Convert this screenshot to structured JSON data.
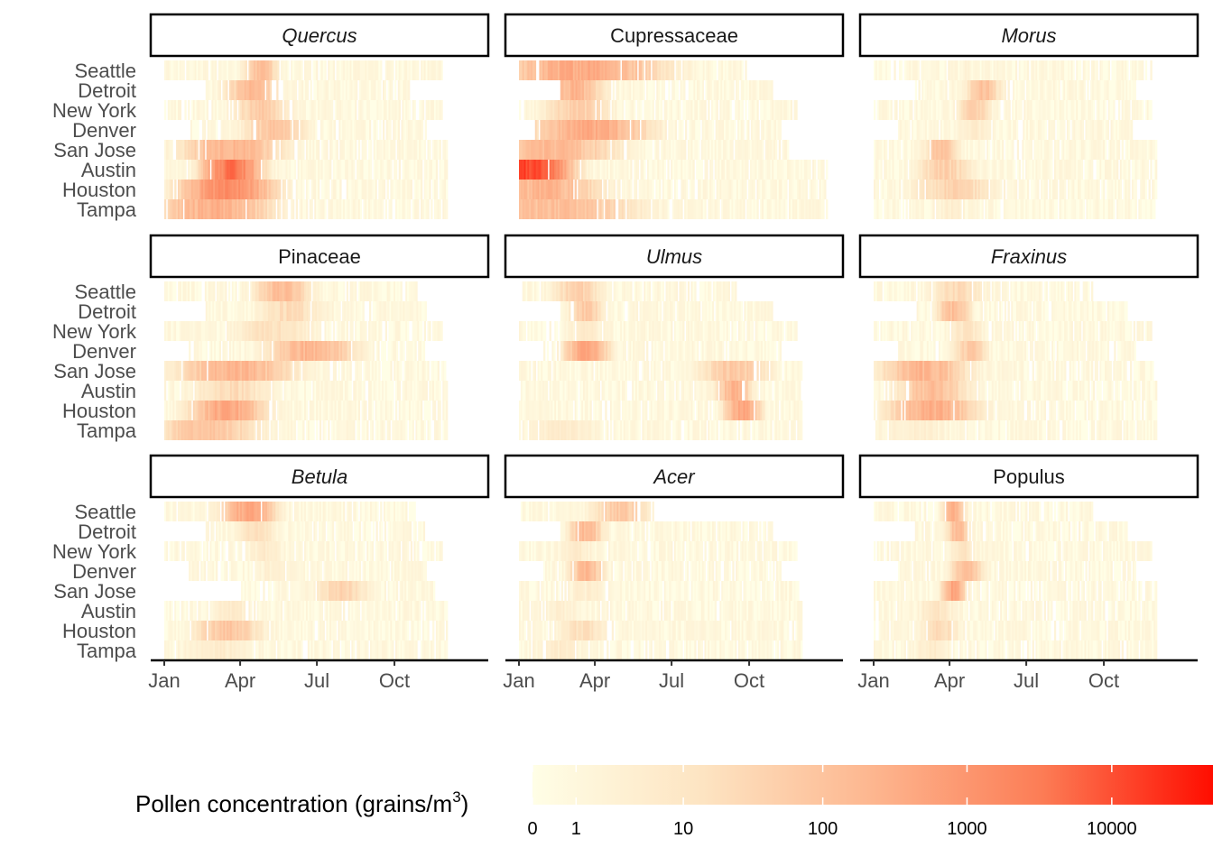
{
  "chart_data": {
    "type": "heatmap",
    "legend": {
      "title": "Pollen concentration (grains/m",
      "title_superscript": "3",
      "title_close": ")",
      "ticks": [
        "0",
        "1",
        "10",
        "100",
        "1000",
        "10000"
      ],
      "tick_values": [
        0,
        1,
        10,
        100,
        1000,
        10000
      ],
      "colors": [
        "#fffee6",
        "#ff0d00"
      ],
      "placement": "bottom"
    },
    "x_ticks": [
      "Jan",
      "Apr",
      "Jul",
      "Oct"
    ],
    "x_tick_days": [
      1,
      91,
      182,
      274
    ],
    "xlim_days": [
      1,
      366
    ],
    "rows": [
      "Seattle",
      "Detroit",
      "New York",
      "Denver",
      "San Jose",
      "Austin",
      "Houston",
      "Tampa"
    ],
    "panels": [
      {
        "taxon": "Quercus",
        "italic": true,
        "cities": [
          {
            "start": 1,
            "end": 330,
            "peak": 115,
            "width": 12,
            "max": 80
          },
          {
            "start": 50,
            "end": 290,
            "peak": 105,
            "width": 18,
            "max": 120
          },
          {
            "start": 1,
            "end": 330,
            "peak": 115,
            "width": 20,
            "max": 50
          },
          {
            "start": 30,
            "end": 310,
            "peak": 130,
            "width": 22,
            "max": 70
          },
          {
            "start": 1,
            "end": 335,
            "peak": 80,
            "width": 35,
            "max": 150
          },
          {
            "start": 1,
            "end": 335,
            "peak": 80,
            "width": 18,
            "max": 2000
          },
          {
            "start": 1,
            "end": 335,
            "peak": 75,
            "width": 30,
            "max": 800
          },
          {
            "start": 1,
            "end": 335,
            "peak": 60,
            "width": 40,
            "max": 200
          }
        ]
      },
      {
        "taxon": "Cupressaceae",
        "italic": false,
        "cities": [
          {
            "start": 1,
            "end": 270,
            "peak": 75,
            "width": 55,
            "max": 250
          },
          {
            "start": 50,
            "end": 300,
            "peak": 65,
            "width": 20,
            "max": 150
          },
          {
            "start": 1,
            "end": 330,
            "peak": 70,
            "width": 25,
            "max": 40
          },
          {
            "start": 20,
            "end": 310,
            "peak": 85,
            "width": 40,
            "max": 250
          },
          {
            "start": 1,
            "end": 320,
            "peak": 40,
            "width": 45,
            "max": 120
          },
          {
            "start": 1,
            "end": 366,
            "peak": 10,
            "width": 25,
            "max": 6000
          },
          {
            "start": 1,
            "end": 366,
            "peak": 30,
            "width": 40,
            "max": 150
          },
          {
            "start": 1,
            "end": 366,
            "peak": 40,
            "width": 60,
            "max": 100
          }
        ]
      },
      {
        "taxon": "Morus",
        "italic": true,
        "cities": [
          {
            "start": 1,
            "end": 330,
            "peak": 110,
            "width": 5,
            "max": 2
          },
          {
            "start": 50,
            "end": 310,
            "peak": 130,
            "width": 12,
            "max": 80
          },
          {
            "start": 1,
            "end": 330,
            "peak": 120,
            "width": 12,
            "max": 40
          },
          {
            "start": 30,
            "end": 310,
            "peak": 120,
            "width": 15,
            "max": 5
          },
          {
            "start": 1,
            "end": 335,
            "peak": 80,
            "width": 12,
            "max": 80
          },
          {
            "start": 1,
            "end": 335,
            "peak": 85,
            "width": 20,
            "max": 40
          },
          {
            "start": 1,
            "end": 335,
            "peak": 95,
            "width": 30,
            "max": 30
          },
          {
            "start": 1,
            "end": 335,
            "peak": 90,
            "width": 15,
            "max": 3
          }
        ]
      },
      {
        "taxon": "Pinaceae",
        "italic": false,
        "cities": [
          {
            "start": 1,
            "end": 300,
            "peak": 140,
            "width": 20,
            "max": 100
          },
          {
            "start": 50,
            "end": 310,
            "peak": 150,
            "width": 25,
            "max": 20
          },
          {
            "start": 1,
            "end": 330,
            "peak": 130,
            "width": 30,
            "max": 15
          },
          {
            "start": 30,
            "end": 310,
            "peak": 175,
            "width": 30,
            "max": 150
          },
          {
            "start": 1,
            "end": 335,
            "peak": 85,
            "width": 40,
            "max": 150
          },
          {
            "start": 1,
            "end": 335,
            "peak": 80,
            "width": 30,
            "max": 20
          },
          {
            "start": 1,
            "end": 335,
            "peak": 75,
            "width": 25,
            "max": 300
          },
          {
            "start": 1,
            "end": 335,
            "peak": 50,
            "width": 40,
            "max": 60
          }
        ]
      },
      {
        "taxon": "Ulmus",
        "italic": true,
        "cities": [
          {
            "start": 1,
            "end": 260,
            "peak": 70,
            "width": 18,
            "max": 40
          },
          {
            "start": 50,
            "end": 300,
            "peak": 80,
            "width": 12,
            "max": 60
          },
          {
            "start": 1,
            "end": 330,
            "peak": 80,
            "width": 15,
            "max": 5
          },
          {
            "start": 30,
            "end": 310,
            "peak": 80,
            "width": 15,
            "max": 300
          },
          {
            "start": 1,
            "end": 335,
            "peak": 255,
            "width": 25,
            "max": 60
          },
          {
            "start": 1,
            "end": 335,
            "peak": 255,
            "width": 12,
            "max": 150
          },
          {
            "start": 1,
            "end": 335,
            "peak": 265,
            "width": 12,
            "max": 300
          },
          {
            "start": 1,
            "end": 335,
            "peak": 50,
            "width": 30,
            "max": 5
          }
        ]
      },
      {
        "taxon": "Fraxinus",
        "italic": true,
        "cities": [
          {
            "start": 1,
            "end": 260,
            "peak": 100,
            "width": 20,
            "max": 20
          },
          {
            "start": 50,
            "end": 300,
            "peak": 95,
            "width": 12,
            "max": 100
          },
          {
            "start": 1,
            "end": 330,
            "peak": 110,
            "width": 15,
            "max": 10
          },
          {
            "start": 30,
            "end": 310,
            "peak": 115,
            "width": 12,
            "max": 50
          },
          {
            "start": 1,
            "end": 335,
            "peak": 60,
            "width": 30,
            "max": 150
          },
          {
            "start": 1,
            "end": 335,
            "peak": 70,
            "width": 25,
            "max": 100
          },
          {
            "start": 1,
            "end": 335,
            "peak": 70,
            "width": 30,
            "max": 200
          },
          {
            "start": 1,
            "end": 335,
            "peak": 50,
            "width": 30,
            "max": 3
          }
        ]
      },
      {
        "taxon": "Betula",
        "italic": true,
        "cities": [
          {
            "start": 1,
            "end": 300,
            "peak": 100,
            "width": 18,
            "max": 300
          },
          {
            "start": 50,
            "end": 310,
            "peak": 110,
            "width": 15,
            "max": 15
          },
          {
            "start": 1,
            "end": 330,
            "peak": 120,
            "width": 15,
            "max": 5
          },
          {
            "start": 30,
            "end": 310,
            "peak": 130,
            "width": 15,
            "max": 3
          },
          {
            "start": 90,
            "end": 320,
            "peak": 210,
            "width": 20,
            "max": 30
          },
          {
            "start": 1,
            "end": 335,
            "peak": 80,
            "width": 20,
            "max": 5
          },
          {
            "start": 1,
            "end": 335,
            "peak": 75,
            "width": 25,
            "max": 60
          },
          {
            "start": 1,
            "end": 335,
            "peak": 60,
            "width": 30,
            "max": 5
          }
        ]
      },
      {
        "taxon": "Acer",
        "italic": true,
        "cities": [
          {
            "start": 1,
            "end": 160,
            "peak": 120,
            "width": 20,
            "max": 60
          },
          {
            "start": 50,
            "end": 300,
            "peak": 80,
            "width": 12,
            "max": 120
          },
          {
            "start": 1,
            "end": 330,
            "peak": 70,
            "width": 15,
            "max": 5
          },
          {
            "start": 30,
            "end": 310,
            "peak": 80,
            "width": 12,
            "max": 120
          },
          {
            "start": 1,
            "end": 335,
            "peak": 80,
            "width": 20,
            "max": 3
          },
          {
            "start": 1,
            "end": 335,
            "peak": 50,
            "width": 20,
            "max": 3
          },
          {
            "start": 1,
            "end": 335,
            "peak": 75,
            "width": 20,
            "max": 15
          },
          {
            "start": 1,
            "end": 335,
            "peak": 50,
            "width": 20,
            "max": 5
          }
        ]
      },
      {
        "taxon": "Populus",
        "italic": false,
        "cities": [
          {
            "start": 1,
            "end": 260,
            "peak": 95,
            "width": 8,
            "max": 150
          },
          {
            "start": 50,
            "end": 300,
            "peak": 100,
            "width": 8,
            "max": 120
          },
          {
            "start": 1,
            "end": 330,
            "peak": 105,
            "width": 10,
            "max": 10
          },
          {
            "start": 30,
            "end": 310,
            "peak": 110,
            "width": 12,
            "max": 80
          },
          {
            "start": 1,
            "end": 335,
            "peak": 95,
            "width": 8,
            "max": 300
          },
          {
            "start": 1,
            "end": 335,
            "peak": 75,
            "width": 15,
            "max": 10
          },
          {
            "start": 1,
            "end": 335,
            "peak": 80,
            "width": 15,
            "max": 20
          },
          {
            "start": 1,
            "end": 335,
            "peak": 70,
            "width": 15,
            "max": 5
          }
        ]
      }
    ]
  }
}
